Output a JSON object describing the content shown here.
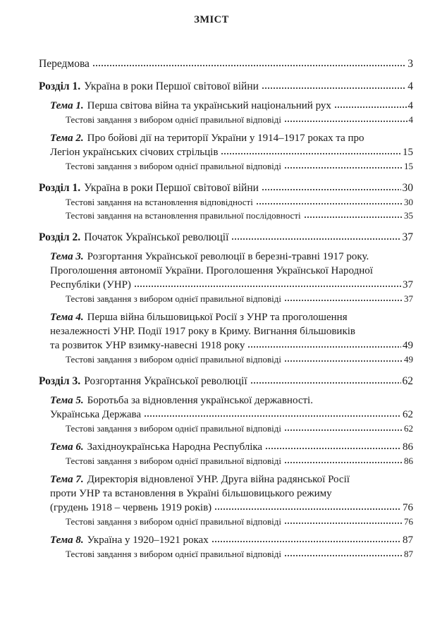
{
  "page": {
    "title": "ЗМІСТ"
  },
  "colors": {
    "text": "#1b1b1b",
    "background": "#ffffff",
    "leader_dots": "#222222"
  },
  "toc": {
    "rows": [
      {
        "level": "preface",
        "prefix": "",
        "text": "Передмова",
        "page": "3",
        "leader": true
      },
      {
        "level": "rozdil",
        "prefix": "Розділ 1.",
        "text": "Україна в роки Першої світової війни",
        "page": "4",
        "leader": true,
        "gap": "section"
      },
      {
        "level": "tema",
        "prefix": "Тема 1.",
        "text": "Перша світова війна та український національний рух",
        "page": "4",
        "leader": true,
        "gap": "tema"
      },
      {
        "level": "test",
        "prefix": "",
        "text": "Тестові завдання з вибором однієї правильної відповіді",
        "page": "4",
        "leader": true
      },
      {
        "level": "tema",
        "prefix": "Тема 2.",
        "text": "Про бойові дії на території України у 1914–1917 роках та про",
        "page": "",
        "leader": false,
        "gap": "tema"
      },
      {
        "level": "tema-cont",
        "prefix": "",
        "text": "Легіон українських січових стрільців",
        "page": "15",
        "leader": true
      },
      {
        "level": "test",
        "prefix": "",
        "text": "Тестові завдання з вибором однієї правильної відповіді",
        "page": "15",
        "leader": true
      },
      {
        "level": "rozdil",
        "prefix": "Розділ 1.",
        "text": "Україна в роки Першої світової війни",
        "page": "30",
        "leader": true,
        "gap": "section"
      },
      {
        "level": "test",
        "prefix": "",
        "text": "Тестові завдання на встановлення відповідності",
        "page": "30",
        "leader": true
      },
      {
        "level": "test",
        "prefix": "",
        "text": "Тестові завдання на встановлення правильної послідовності",
        "page": "35",
        "leader": true
      },
      {
        "level": "rozdil",
        "prefix": "Розділ 2.",
        "text": "Початок Української революції",
        "page": "37",
        "leader": true,
        "gap": "section"
      },
      {
        "level": "tema",
        "prefix": "Тема 3.",
        "text": "Розгортання Української революції в березні-травні 1917 року.",
        "page": "",
        "leader": false,
        "gap": "tema"
      },
      {
        "level": "tema-cont",
        "prefix": "",
        "text": "Проголошення автономії України. Проголошення Української Народної",
        "page": "",
        "leader": false
      },
      {
        "level": "tema-cont",
        "prefix": "",
        "text": "Республіки (УНР)",
        "page": "37",
        "leader": true
      },
      {
        "level": "test",
        "prefix": "",
        "text": "Тестові завдання з вибором однієї правильної відповіді",
        "page": "37",
        "leader": true
      },
      {
        "level": "tema",
        "prefix": "Тема 4.",
        "text": "Перша війна більшовицької Росії з УНР та проголошення",
        "page": "",
        "leader": false,
        "gap": "tema"
      },
      {
        "level": "tema-cont",
        "prefix": "",
        "text": "незалежності УНР. Події 1917 року в Криму. Вигнання більшовиків",
        "page": "",
        "leader": false
      },
      {
        "level": "tema-cont",
        "prefix": "",
        "text": "та розвиток УНР взимку-навесні 1918 року",
        "page": "49",
        "leader": true
      },
      {
        "level": "test",
        "prefix": "",
        "text": "Тестові завдання з вибором однієї правильної відповіді",
        "page": "49",
        "leader": true
      },
      {
        "level": "rozdil",
        "prefix": "Розділ 3.",
        "text": "Розгортання Української революції",
        "page": "62",
        "leader": true,
        "gap": "section"
      },
      {
        "level": "tema",
        "prefix": "Тема 5.",
        "text": "Боротьба за відновлення української державності.",
        "page": "",
        "leader": false,
        "gap": "tema"
      },
      {
        "level": "tema-cont",
        "prefix": "",
        "text": "Українська Держава",
        "page": "62",
        "leader": true
      },
      {
        "level": "test",
        "prefix": "",
        "text": "Тестові завдання з вибором однієї правильної відповіді",
        "page": "62",
        "leader": true
      },
      {
        "level": "tema",
        "prefix": "Тема 6.",
        "text": "Західноукраїнська Народна Республіка",
        "page": "86",
        "leader": true,
        "gap": "tema"
      },
      {
        "level": "test",
        "prefix": "",
        "text": "Тестові завдання з вибором однієї правильної відповіді",
        "page": "86",
        "leader": true
      },
      {
        "level": "tema",
        "prefix": "Тема 7.",
        "text": "Директорія відновленої УНР. Друга війна радянської Росії",
        "page": "",
        "leader": false,
        "gap": "tema"
      },
      {
        "level": "tema-cont",
        "prefix": "",
        "text": "проти УНР та встановлення в Україні більшовицького режиму",
        "page": "",
        "leader": false
      },
      {
        "level": "tema-cont",
        "prefix": "",
        "text": "(грудень 1918 – червень 1919 років)",
        "page": "76",
        "leader": true
      },
      {
        "level": "test",
        "prefix": "",
        "text": "Тестові завдання з вибором однієї правильної відповіді",
        "page": "76",
        "leader": true
      },
      {
        "level": "tema",
        "prefix": "Тема 8.",
        "text": "Україна у 1920–1921 роках",
        "page": "87",
        "leader": true,
        "gap": "tema"
      },
      {
        "level": "test",
        "prefix": "",
        "text": "Тестові завдання з вибором однієї правильної відповіді",
        "page": "87",
        "leader": true
      }
    ]
  }
}
